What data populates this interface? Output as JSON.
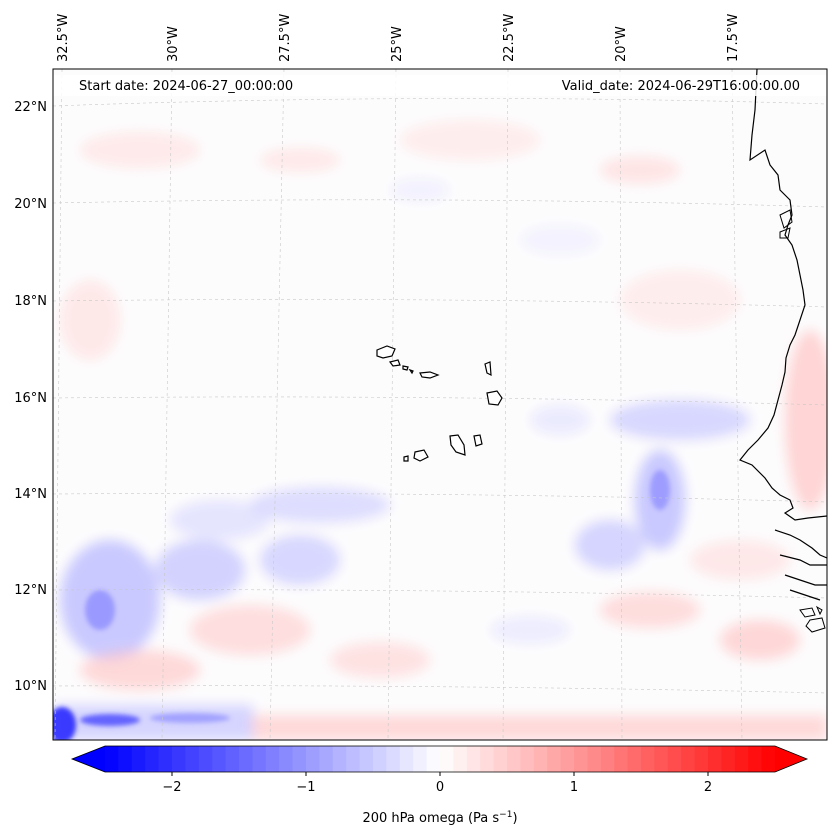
{
  "map": {
    "start_date": "Start date: 2024-06-27_00:00:00",
    "valid_date": "Valid_date: 2024-06-29T16:00:00.00",
    "lon_labels": [
      "32.5°W",
      "30°W",
      "27.5°W",
      "25°W",
      "22.5°W",
      "20°W",
      "17.5°W"
    ],
    "lat_labels": [
      "22°N",
      "20°N",
      "18°N",
      "16°N",
      "14°N",
      "12°N",
      "10°N"
    ],
    "colorbar_label": "200 hPa omega (Pa s",
    "colorbar_label_sup": "−1",
    "colorbar_label_end": ")",
    "colorbar_ticks": [
      "−2",
      "−1",
      "0",
      "1",
      "2"
    ],
    "colorbar_range": [
      -2.5,
      2.5
    ],
    "colors": {
      "negative": "#0000ff",
      "neutral": "#ffffff",
      "positive": "#ff0000",
      "coast": "#000000"
    }
  }
}
